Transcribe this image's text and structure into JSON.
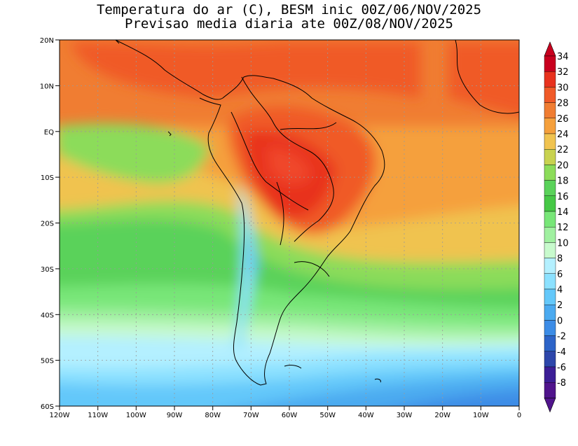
{
  "title": {
    "line1": "Temperatura do ar (C), BESM inic 00Z/06/NOV/2025",
    "line2": "Previsao media diaria ate 00Z/08/NOV/2025"
  },
  "axes": {
    "lon_labels": [
      "120W",
      "110W",
      "100W",
      "90W",
      "80W",
      "70W",
      "60W",
      "50W",
      "40W",
      "30W",
      "20W",
      "10W",
      "0"
    ],
    "lat_labels": [
      "20N",
      "10N",
      "EQ",
      "10S",
      "20S",
      "30S",
      "40S",
      "50S",
      "60S"
    ],
    "lon_range": [
      -120,
      0
    ],
    "lat_range": [
      -60,
      20
    ]
  },
  "colorbar": {
    "levels": [
      "34",
      "32",
      "30",
      "28",
      "26",
      "24",
      "22",
      "20",
      "18",
      "16",
      "14",
      "12",
      "10",
      "8",
      "6",
      "4",
      "2",
      "0",
      "-2",
      "-4",
      "-6",
      "-8"
    ],
    "colors": [
      "#c8001e",
      "#e8321e",
      "#f05a28",
      "#f07d32",
      "#f5a03c",
      "#f0c350",
      "#c8d250",
      "#8cdc5a",
      "#5ad25a",
      "#46c846",
      "#78e678",
      "#a0f0a0",
      "#c8facd",
      "#b4f0ff",
      "#8ce1ff",
      "#64c8fa",
      "#4baaf0",
      "#3c8ce6",
      "#2d64c8",
      "#2d46aa",
      "#3c1e96",
      "#50148c"
    ]
  }
}
